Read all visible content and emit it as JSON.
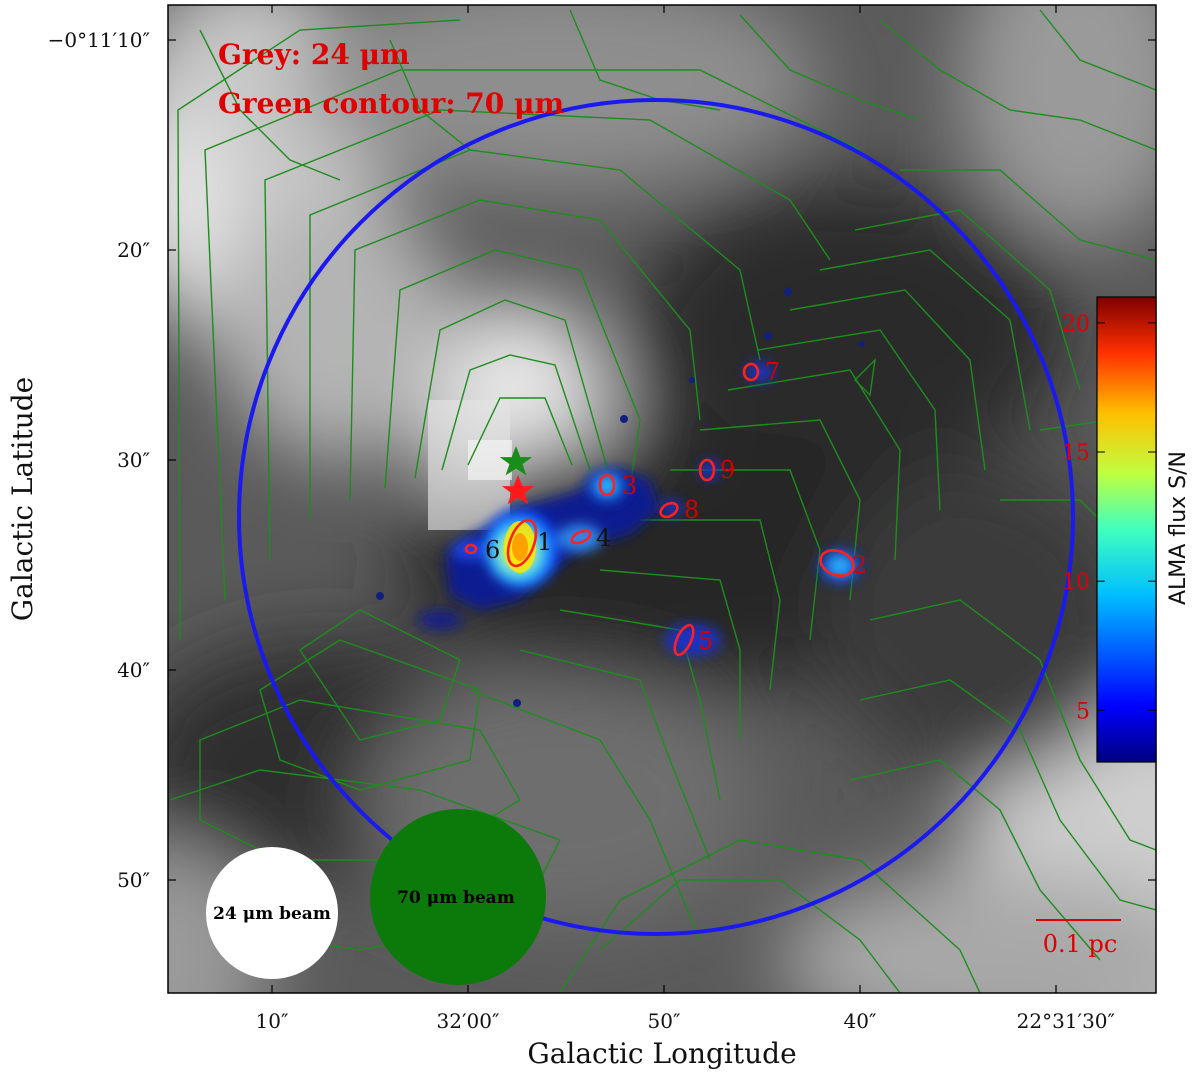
{
  "chart_data": {
    "type": "image",
    "xlabel": "Galactic Longitude",
    "ylabel": "Galactic Latitude",
    "x_ticks": [
      "10″",
      "32′00″",
      "50″",
      "40″",
      "22°31′30″"
    ],
    "y_ticks": [
      "−0°11′10″",
      "20″",
      "30″",
      "40″",
      "50″"
    ],
    "annotations": {
      "grey": "Grey: 24 μm",
      "contour": "Green contour: 70 μm"
    },
    "colorbar": {
      "label": "ALMA flux S/N",
      "ticks": [
        "5",
        "10",
        "15",
        "20"
      ],
      "range": [
        3,
        21
      ],
      "colormap": "jet"
    },
    "sources": [
      {
        "id": "1"
      },
      {
        "id": "2"
      },
      {
        "id": "3"
      },
      {
        "id": "4"
      },
      {
        "id": "5"
      },
      {
        "id": "6"
      },
      {
        "id": "7"
      },
      {
        "id": "8"
      },
      {
        "id": "9"
      }
    ],
    "beams": {
      "b24": "24 μm beam",
      "b70": "70 μm beam"
    },
    "scalebar": "0.1 pc",
    "colors": {
      "contour": "#1e8c1e",
      "circle": "#1a1af0",
      "marker_red": "#ff1a1a",
      "marker_green": "#1a8c1a",
      "source_ellipse": "#ff2020",
      "beam70": "#0b7a0b",
      "beam24": "#ffffff"
    }
  }
}
